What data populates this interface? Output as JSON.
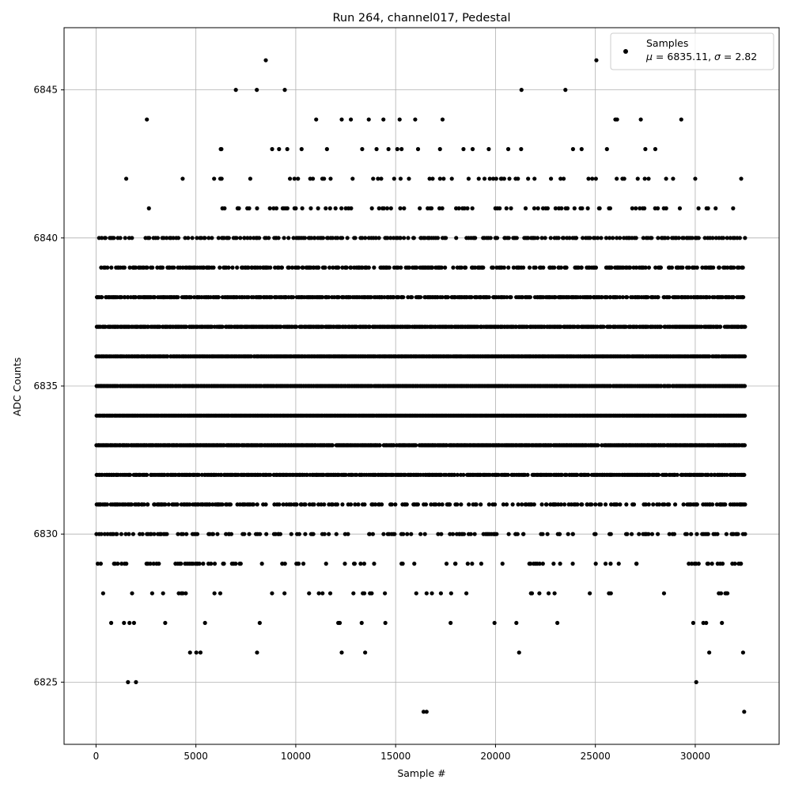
{
  "chart_data": {
    "type": "scatter",
    "title": "Run 264, channel017, Pedestal",
    "xlabel": "Sample #",
    "ylabel": "ADC Counts",
    "xlim": [
      -1600,
      34200
    ],
    "ylim": [
      6822.9,
      6847.1
    ],
    "x_ticks": [
      0,
      5000,
      10000,
      15000,
      20000,
      25000,
      30000
    ],
    "y_ticks": [
      6825,
      6830,
      6835,
      6840,
      6845
    ],
    "grid": true,
    "legend_position": "top-right",
    "legend": {
      "label": "Samples",
      "stats_prefix": "μ = 6835.11, ",
      "stats_sigma": "σ",
      "stats_suffix": " = 2.82"
    },
    "marker_color": "#000000",
    "x_max_sample": 32500,
    "level_density": [
      {
        "y": 6834,
        "density": 1.0
      },
      {
        "y": 6835,
        "density": 0.98
      },
      {
        "y": 6836,
        "density": 0.95
      },
      {
        "y": 6833,
        "density": 0.93
      },
      {
        "y": 6837,
        "density": 0.88
      },
      {
        "y": 6832,
        "density": 0.82
      },
      {
        "y": 6838,
        "density": 0.72
      },
      {
        "y": 6831,
        "density": 0.6
      },
      {
        "y": 6839,
        "density": 0.5
      },
      {
        "y": 6830,
        "density": 0.42
      },
      {
        "y": 6840,
        "density": 0.38
      },
      {
        "y": 6829,
        "density": 0.22
      },
      {
        "y": 6841,
        "density": 0.2
      },
      {
        "y": 6842,
        "density": 0.11
      },
      {
        "y": 6828,
        "density": 0.11
      },
      {
        "y": 6843,
        "density": 0.045
      },
      {
        "y": 6827,
        "density": 0.035
      },
      {
        "y": 6844,
        "density": 0.018
      },
      {
        "y": 6826,
        "density": 0.014
      }
    ],
    "sparse_points": [
      {
        "x": 7000,
        "y": 6845
      },
      {
        "x": 8050,
        "y": 6845
      },
      {
        "x": 9450,
        "y": 6845
      },
      {
        "x": 21300,
        "y": 6845
      },
      {
        "x": 23500,
        "y": 6845
      },
      {
        "x": 8500,
        "y": 6846
      },
      {
        "x": 25050,
        "y": 6846
      },
      {
        "x": 1600,
        "y": 6825
      },
      {
        "x": 2000,
        "y": 6825
      },
      {
        "x": 30050,
        "y": 6825
      },
      {
        "x": 16400,
        "y": 6824
      },
      {
        "x": 16550,
        "y": 6824
      },
      {
        "x": 32450,
        "y": 6824
      },
      {
        "x": 12300,
        "y": 6826
      },
      {
        "x": 30700,
        "y": 6826
      },
      {
        "x": 13300,
        "y": 6827
      },
      {
        "x": 19950,
        "y": 6827
      },
      {
        "x": 29900,
        "y": 6827
      },
      {
        "x": 12300,
        "y": 6844
      },
      {
        "x": 29300,
        "y": 6844
      },
      {
        "x": 30000,
        "y": 6842
      },
      {
        "x": 28000,
        "y": 6843
      }
    ]
  }
}
